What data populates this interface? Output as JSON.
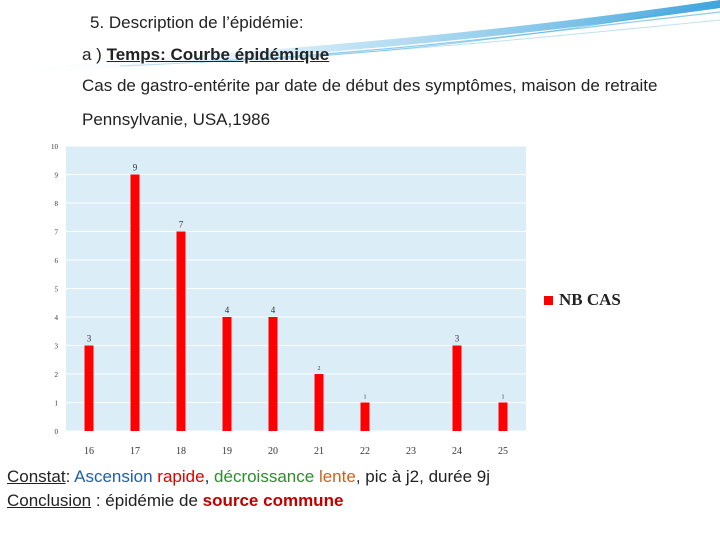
{
  "slide": {
    "title": "5. Description de l’épidémie:",
    "subtitle_prefix": "a )",
    "subtitle": "Temps: Courbe épidémique",
    "description": "Cas de gastro-entérite par date de début des symptômes, maison de retraite Pennsylvanie, USA,1986"
  },
  "chart_data": {
    "type": "bar",
    "categories": [
      "16",
      "17",
      "18",
      "19",
      "20",
      "21",
      "22",
      "23",
      "24",
      "25"
    ],
    "series": [
      {
        "name": "NB CAS",
        "values": [
          3,
          9,
          7,
          4,
          4,
          2,
          1,
          0,
          3,
          1
        ]
      }
    ],
    "data_labels": [
      "3",
      "9",
      "7",
      "4",
      "4",
      "2",
      "1",
      "",
      "3",
      "1"
    ],
    "y_ticks": [
      "0",
      "1",
      "2",
      "3",
      "4",
      "5",
      "6",
      "7",
      "8",
      "9",
      "10"
    ],
    "ylim": [
      0,
      10
    ],
    "grid": true,
    "legend": "right",
    "colors": {
      "bar": "#ff0000",
      "plot_bg": "#dbeef8",
      "grid": "#ffffff"
    }
  },
  "constat": {
    "label": "Constat",
    "colon": ":",
    "part1": "Ascension",
    "part2": "rapide",
    "comma1": ",",
    "part3": "décroissance",
    "part4": "lente",
    "rest": ", pic à j2, durée 9j"
  },
  "conclusion": {
    "label": "Conclusion",
    "middle": " : épidémie de",
    "highlight": "source commune"
  }
}
